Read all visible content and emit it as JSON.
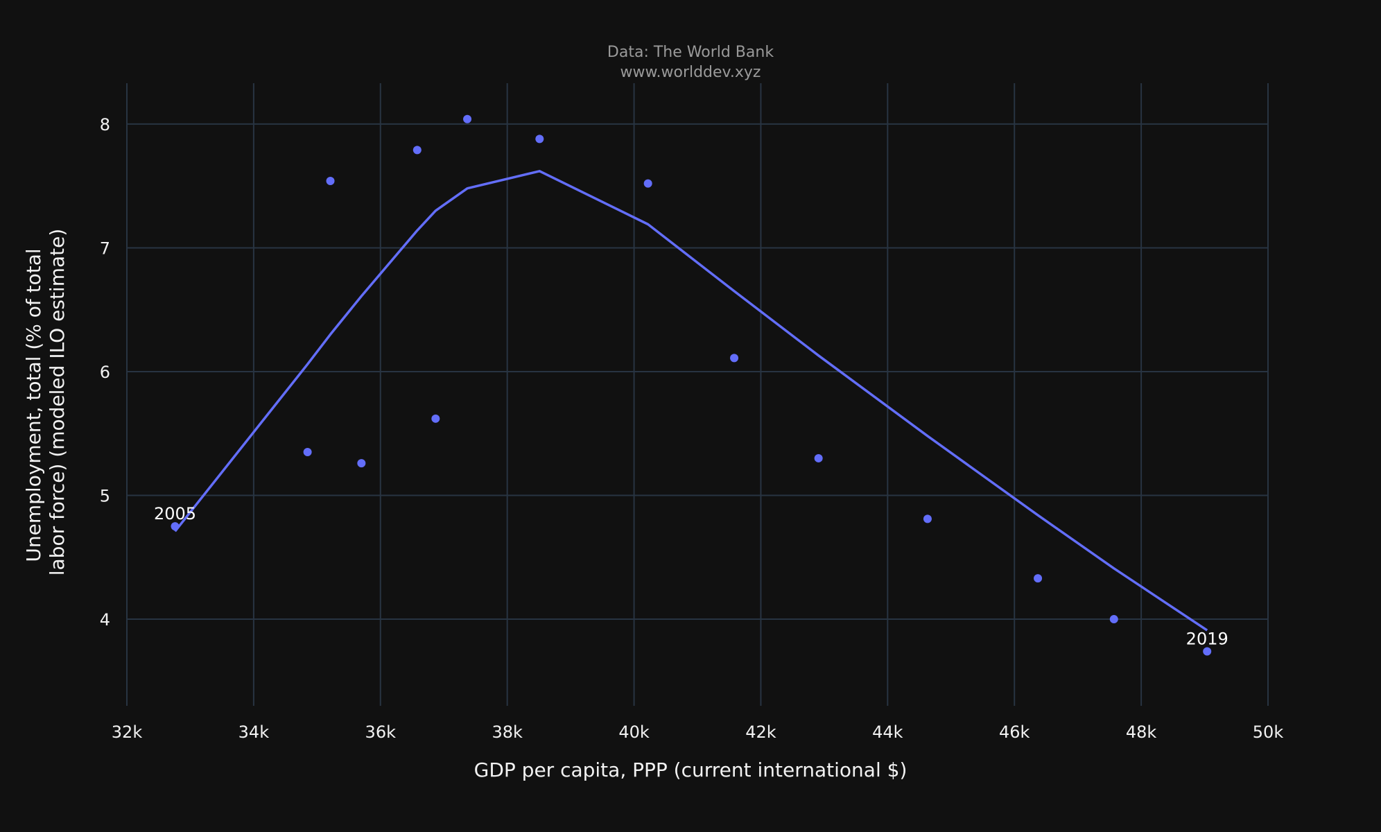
{
  "chart_data": {
    "type": "scatter",
    "title_lines": [
      "Data: The World Bank",
      "www.worlddev.xyz"
    ],
    "xlabel": "GDP per capita, PPP (current international $)",
    "ylabel": "Unemployment, total (% of total labor force) (modeled ILO estimate)",
    "ylabel_lines": [
      "Unemployment, total (% of total",
      "labor force) (modeled ILO estimate)"
    ],
    "xlim": [
      32000,
      50000
    ],
    "ylim": [
      3.3,
      8.33
    ],
    "x_ticks": [
      32000,
      34000,
      36000,
      38000,
      40000,
      42000,
      44000,
      46000,
      48000,
      50000
    ],
    "x_tick_labels": [
      "32k",
      "34k",
      "36k",
      "38k",
      "40k",
      "42k",
      "44k",
      "46k",
      "48k",
      "50k"
    ],
    "y_ticks": [
      4,
      5,
      6,
      7,
      8
    ],
    "y_tick_labels": [
      "4",
      "5",
      "6",
      "7",
      "8"
    ],
    "grid": true,
    "marker_color": "#636efa",
    "line_color": "#636efa",
    "background": "#111111",
    "series": [
      {
        "mode": "markers",
        "x": [
          32760,
          34850,
          35210,
          35700,
          36580,
          36870,
          37370,
          38510,
          40220,
          41580,
          42910,
          44630,
          46370,
          47570,
          49040
        ],
        "y": [
          4.75,
          5.35,
          7.54,
          5.26,
          7.79,
          5.62,
          8.04,
          7.88,
          7.52,
          6.11,
          5.3,
          4.81,
          4.33,
          4.0,
          3.74
        ],
        "point_labels": [
          {
            "index": 0,
            "text": "2005",
            "position": "top"
          },
          {
            "index": 14,
            "text": "2019",
            "position": "top"
          }
        ]
      },
      {
        "mode": "lines",
        "name": "trend",
        "x": [
          32760,
          34850,
          35210,
          35700,
          36580,
          36870,
          37370,
          38510,
          40220,
          41580,
          42910,
          44630,
          46370,
          47570,
          49040
        ],
        "y": [
          4.71,
          6.06,
          6.3,
          6.61,
          7.14,
          7.3,
          7.48,
          7.62,
          7.19,
          6.65,
          6.13,
          5.48,
          4.84,
          4.41,
          3.91
        ]
      }
    ]
  }
}
